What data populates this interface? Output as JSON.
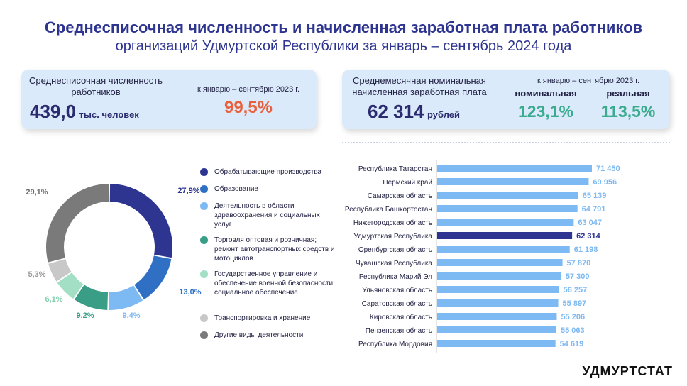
{
  "header": {
    "title": "Среднесписочная численность и начисленная заработная плата работников",
    "subtitle": "организаций Удмуртской Республики за январь – сентябрь 2024 года"
  },
  "card_employees": {
    "label": "Среднесписочная численность работников",
    "value": "439,0",
    "unit": "тыс. человек",
    "compare_label": "к январю – сентябрю 2023 г.",
    "compare_value": "99,5%",
    "compare_color": "#e8613c"
  },
  "card_salary": {
    "label": "Среднемесячная номинальная начисленная заработная плата",
    "value": "62 314",
    "unit": "рублей",
    "compare_label": "к январю – сентябрю 2023 г.",
    "nominal_label": "номинальная",
    "nominal_value": "123,1%",
    "real_label": "реальная",
    "real_value": "113,5%",
    "value_color": "#3aab8e"
  },
  "chart_data": [
    {
      "type": "pie",
      "values": [
        27.9,
        13.0,
        9.4,
        9.2,
        6.1,
        5.3,
        29.1
      ],
      "value_labels": [
        "27,9%",
        "13,0%",
        "9,4%",
        "9,2%",
        "6,1%",
        "5,3%",
        "29,1%"
      ],
      "categories": [
        "Обрабатывающие производства",
        "Образование",
        "Деятельность в области здравоохранения и социальных услуг",
        "Торговля оптовая и розничная; ремонт автотранспортных средств и мотоциклов",
        "Государственное управление и обеспечение военной безопасности; социальное обеспечение",
        "Транспортировка и хранение",
        "Другие виды деятельности"
      ],
      "colors": [
        "#2e3591",
        "#2f6fc4",
        "#7db9f2",
        "#3a9e86",
        "#a3dfc4",
        "#c8c8c8",
        "#7a7a7a"
      ],
      "donut": true
    },
    {
      "type": "bar",
      "orientation": "horizontal",
      "categories": [
        "Республика Татарстан",
        "Пермский край",
        "Самарская область",
        "Республика Башкортостан",
        "Нижегородская область",
        "Удмуртская Республика",
        "Оренбургская область",
        "Чувашская Республика",
        "Республика Марий Эл",
        "Ульяновская область",
        "Саратовская область",
        "Кировская область",
        "Пензенская область",
        "Республика Мордовия"
      ],
      "values": [
        71450,
        69956,
        65139,
        64791,
        63047,
        62314,
        61198,
        57870,
        57300,
        56257,
        55897,
        55206,
        55063,
        54619
      ],
      "value_labels": [
        "71 450",
        "69 956",
        "65 139",
        "64 791",
        "63 047",
        "62 314",
        "61 198",
        "57 870",
        "57 300",
        "56 257",
        "55 897",
        "55 206",
        "55 063",
        "54 619"
      ],
      "highlight": "Удмуртская Республика",
      "bar_color": "#7db9f2",
      "highlight_color": "#2e3591",
      "label_color": "#7db9f2"
    }
  ],
  "logo": "УДМУРТСТАТ"
}
